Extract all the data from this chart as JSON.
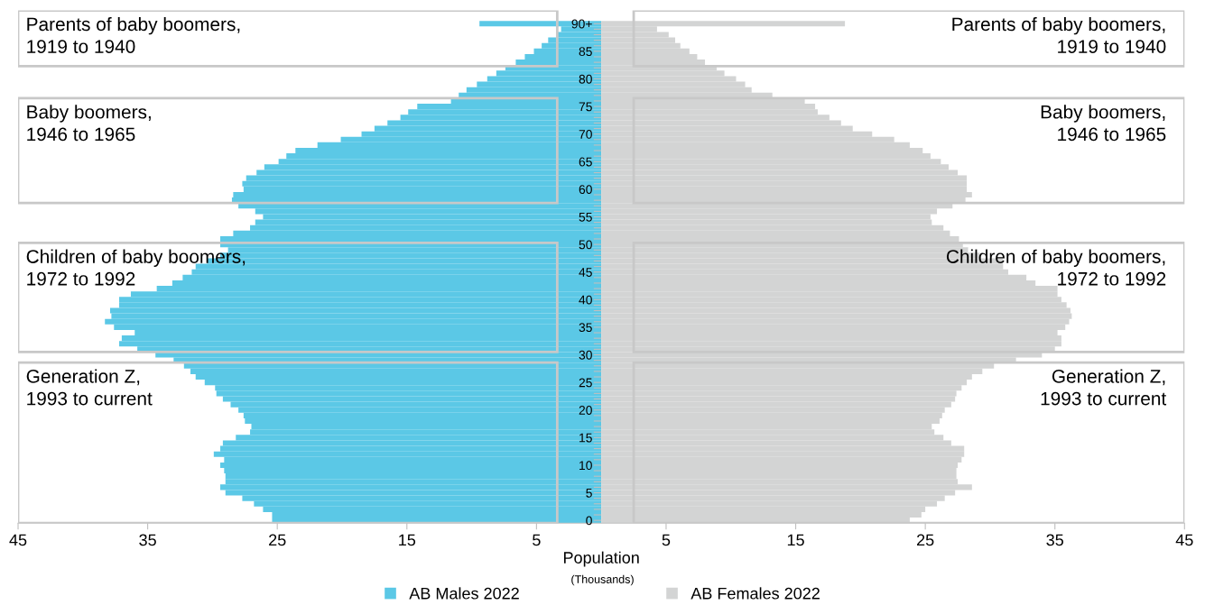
{
  "chart_data": {
    "type": "bar",
    "orientation": "horizontal",
    "categories": [
      "90+",
      null,
      null,
      null,
      null,
      "85",
      null,
      null,
      null,
      null,
      "80",
      null,
      null,
      null,
      null,
      "75",
      null,
      null,
      null,
      null,
      "70",
      null,
      null,
      null,
      null,
      "65",
      null,
      null,
      null,
      null,
      "60",
      null,
      null,
      null,
      null,
      "55",
      null,
      null,
      null,
      null,
      "50",
      null,
      null,
      null,
      null,
      "45",
      null,
      null,
      null,
      null,
      "40",
      null,
      null,
      null,
      null,
      "35",
      null,
      null,
      null,
      null,
      "30",
      null,
      null,
      null,
      null,
      "25",
      null,
      null,
      null,
      null,
      "20",
      null,
      null,
      null,
      null,
      "15",
      null,
      null,
      null,
      null,
      "10",
      null,
      null,
      null,
      null,
      "5",
      null,
      null,
      null,
      null,
      "0"
    ],
    "series": [
      {
        "name": "AB Males 2022",
        "color": "#5bc8e6",
        "values": [
          -9.4,
          -3.1,
          -3.4,
          -4.1,
          -4.6,
          -5.2,
          -5.9,
          -6.6,
          -7.4,
          -8.1,
          -8.8,
          -9.6,
          -10.4,
          -11.0,
          -11.6,
          -14.2,
          -14.9,
          -15.5,
          -16.5,
          -17.5,
          -18.5,
          -20.1,
          -21.9,
          -23.6,
          -24.3,
          -24.9,
          -26.0,
          -26.6,
          -27.4,
          -27.7,
          -27.6,
          -28.4,
          -28.5,
          -28.0,
          -26.7,
          -26.1,
          -26.7,
          -27.1,
          -28.4,
          -29.4,
          -29.4,
          -28.8,
          -29.4,
          -30.4,
          -31.3,
          -31.6,
          -32.3,
          -33.1,
          -34.3,
          -36.3,
          -37.2,
          -37.2,
          -37.9,
          -37.8,
          -38.3,
          -37.6,
          -36.0,
          -37.0,
          -37.2,
          -35.8,
          -34.4,
          -33.0,
          -32.2,
          -31.7,
          -31.3,
          -30.6,
          -29.8,
          -29.7,
          -29.2,
          -28.6,
          -28.0,
          -27.6,
          -27.5,
          -27.0,
          -27.1,
          -28.2,
          -29.2,
          -29.4,
          -29.9,
          -29.1,
          -29.4,
          -29.1,
          -29.0,
          -29.0,
          -29.4,
          -29.0,
          -27.7,
          -26.8,
          -26.1,
          -25.4,
          -25.4
        ]
      },
      {
        "name": "AB Females 2022",
        "color": "#d3d4d4",
        "values": [
          18.8,
          4.3,
          5.2,
          5.7,
          6.1,
          6.8,
          7.4,
          8.0,
          8.9,
          9.5,
          10.4,
          11.1,
          11.6,
          13.2,
          15.7,
          16.5,
          16.7,
          17.6,
          18.5,
          19.4,
          20.9,
          22.6,
          23.8,
          24.8,
          25.4,
          26.2,
          26.8,
          27.5,
          28.2,
          28.2,
          28.2,
          28.6,
          28.1,
          27.1,
          25.9,
          25.4,
          25.5,
          26.4,
          26.9,
          27.6,
          27.9,
          28.3,
          29.2,
          31.0,
          31.0,
          31.4,
          32.8,
          33.5,
          35.2,
          35.2,
          35.5,
          35.9,
          36.2,
          36.3,
          36.1,
          35.8,
          35.2,
          35.5,
          35.5,
          35.0,
          34.0,
          32.0,
          30.3,
          29.4,
          28.6,
          28.2,
          27.8,
          27.4,
          27.3,
          27.0,
          26.5,
          26.3,
          26.1,
          25.5,
          25.7,
          26.4,
          27.0,
          28.0,
          28.0,
          27.8,
          27.5,
          27.4,
          27.4,
          27.5,
          28.6,
          27.3,
          26.5,
          25.9,
          25.0,
          24.7,
          23.8
        ]
      }
    ],
    "xlim": [
      -45,
      45
    ],
    "xticks": [
      {
        "value": -45,
        "label": "45"
      },
      {
        "value": -35,
        "label": "35"
      },
      {
        "value": -25,
        "label": "25"
      },
      {
        "value": -15,
        "label": "15"
      },
      {
        "value": -5,
        "label": "5"
      },
      5,
      15,
      25,
      35,
      45
    ],
    "xlabel": "Population",
    "annotations": [
      "Parents of baby boomers,\n1919 to 1940",
      "Parents of baby boomers,\n1919 to 1940",
      "Baby boomers,\n1946 to 1965",
      "Baby boomers,\n1946 to 1965",
      "Children of baby boomers,\n1972 to 1992",
      "Children of baby boomers,\n1972 to 1992",
      "Generation Z,\n1993 to current",
      "Generation Z,\n1993 to current",
      "(Thousands)"
    ],
    "legend": "bottom",
    "stacked": true,
    "grid": false
  }
}
